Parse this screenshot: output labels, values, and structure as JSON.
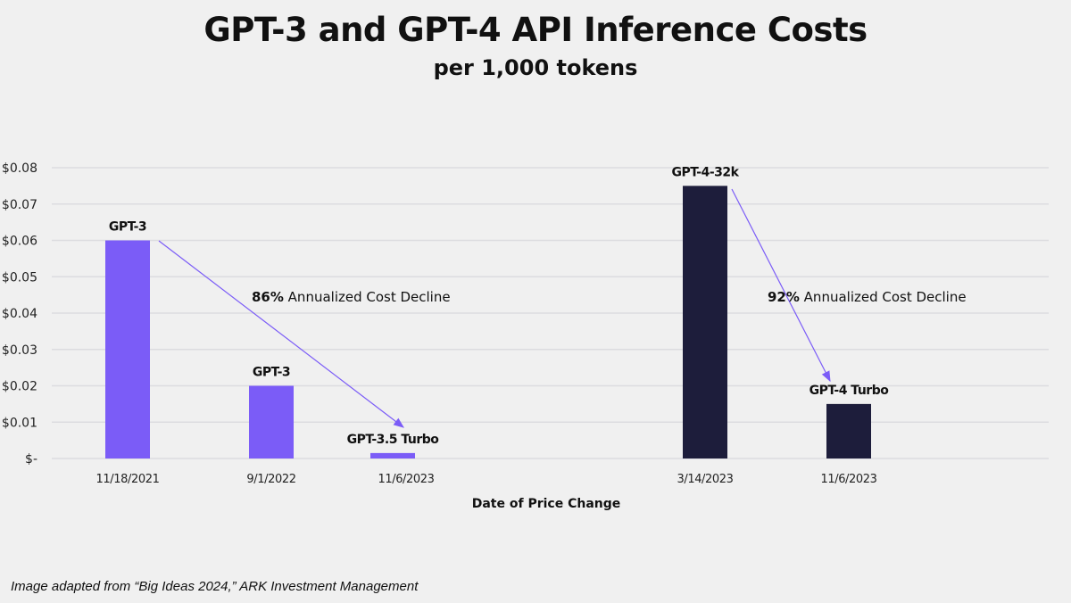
{
  "chart_data": {
    "type": "bar",
    "title": "GPT-3 and GPT-4 API Inference Costs",
    "subtitle": "per 1,000 tokens",
    "xlabel": "Date of Price Change",
    "ylabel": "",
    "ylim": [
      0,
      0.08
    ],
    "yticks": [
      0,
      0.01,
      0.02,
      0.03,
      0.04,
      0.05,
      0.06,
      0.07,
      0.08
    ],
    "ytick_labels": [
      "$-",
      "$0.01",
      "$0.02",
      "$0.03",
      "$0.04",
      "$0.05",
      "$0.06",
      "$0.07",
      "$0.08"
    ],
    "grid": true,
    "categories": [
      "11/18/2021",
      "9/1/2022",
      "11/6/2023",
      "3/14/2023",
      "11/6/2023"
    ],
    "bars": [
      {
        "date": "11/18/2021",
        "label": "GPT-3",
        "value": 0.06,
        "color": "#7b5cf7"
      },
      {
        "date": "9/1/2022",
        "label": "GPT-3",
        "value": 0.02,
        "color": "#7b5cf7"
      },
      {
        "date": "11/6/2023",
        "label": "GPT-3.5 Turbo",
        "value": 0.0015,
        "color": "#7b5cf7"
      },
      {
        "date": "3/14/2023",
        "label": "GPT-4-32k",
        "value": 0.075,
        "color": "#1d1d3b"
      },
      {
        "date": "11/6/2023",
        "label": "GPT-4 Turbo",
        "value": 0.015,
        "color": "#1d1d3b"
      }
    ],
    "annotations": [
      {
        "bold": "86%",
        "text": " Annualized Cost Decline",
        "from_bar": 0,
        "to_bar": 2
      },
      {
        "bold": "92%",
        "text": " Annualized Cost Decline",
        "from_bar": 3,
        "to_bar": 4
      }
    ],
    "arrow_color": "#7b5cf7"
  },
  "footnote": "Image adapted from “Big Ideas 2024,” ARK Investment Management"
}
